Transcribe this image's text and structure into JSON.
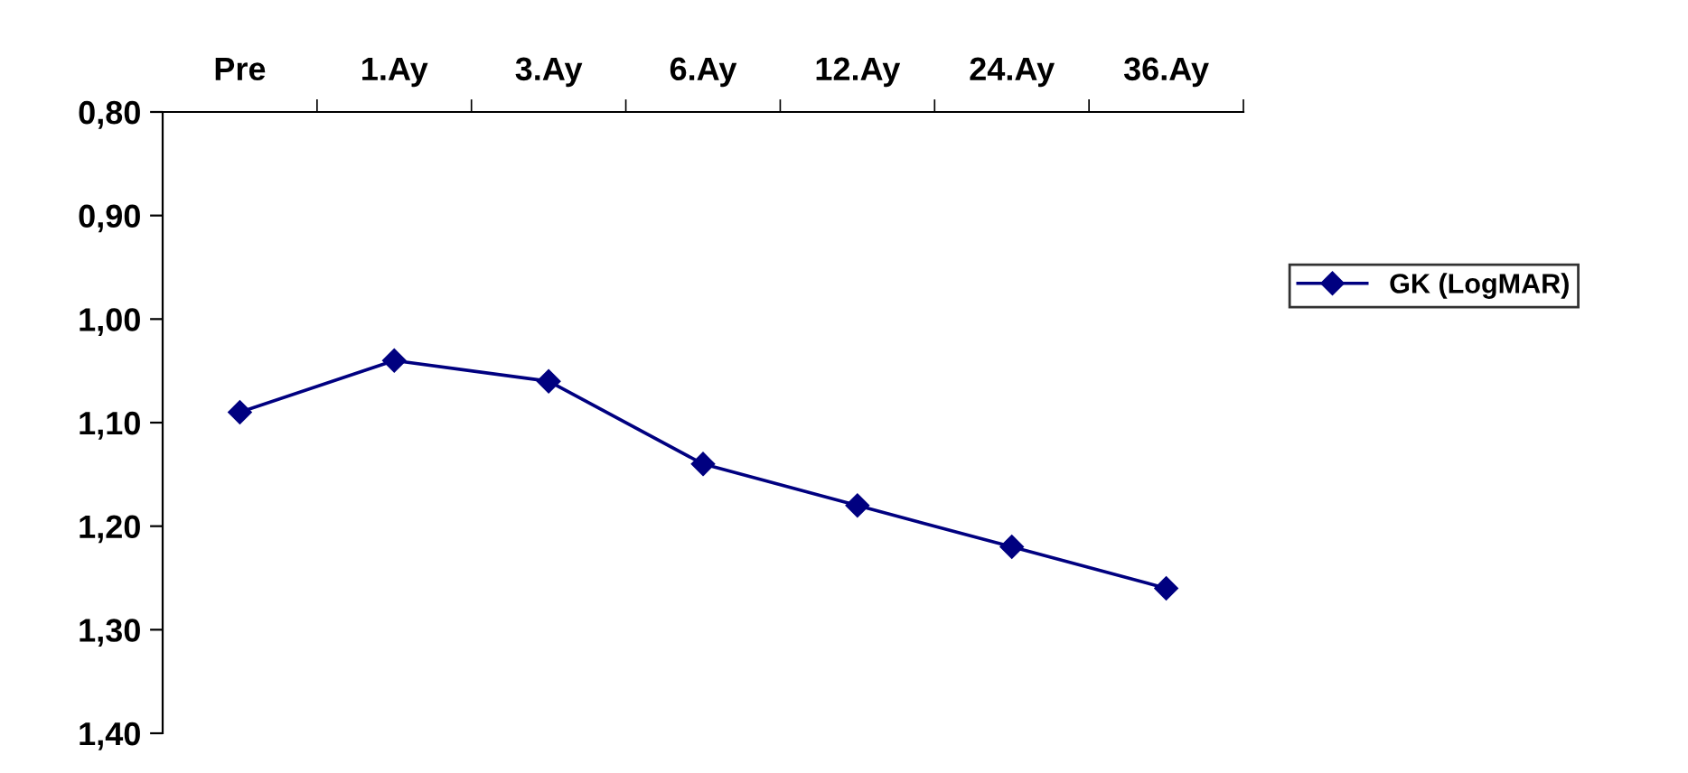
{
  "chart_data": {
    "type": "line",
    "categories": [
      "Pre",
      "1.Ay",
      "3.Ay",
      "6.Ay",
      "12.Ay",
      "24.Ay",
      "36.Ay"
    ],
    "series": [
      {
        "name": "GK (LogMAR)",
        "color": "#000080",
        "values": [
          1.09,
          1.04,
          1.06,
          1.14,
          1.18,
          1.22,
          1.26
        ]
      }
    ],
    "ylim": [
      1.4,
      0.8
    ],
    "yticks": [
      {
        "value": 0.8,
        "label": "0,80"
      },
      {
        "value": 0.9,
        "label": "0,90"
      },
      {
        "value": 1.0,
        "label": "1,00"
      },
      {
        "value": 1.1,
        "label": "1,10"
      },
      {
        "value": 1.2,
        "label": "1,20"
      },
      {
        "value": 1.3,
        "label": "1,30"
      },
      {
        "value": 1.4,
        "label": "1,40"
      }
    ],
    "marker": "diamond",
    "line_style": "solid",
    "grid": false,
    "legend": "right"
  }
}
